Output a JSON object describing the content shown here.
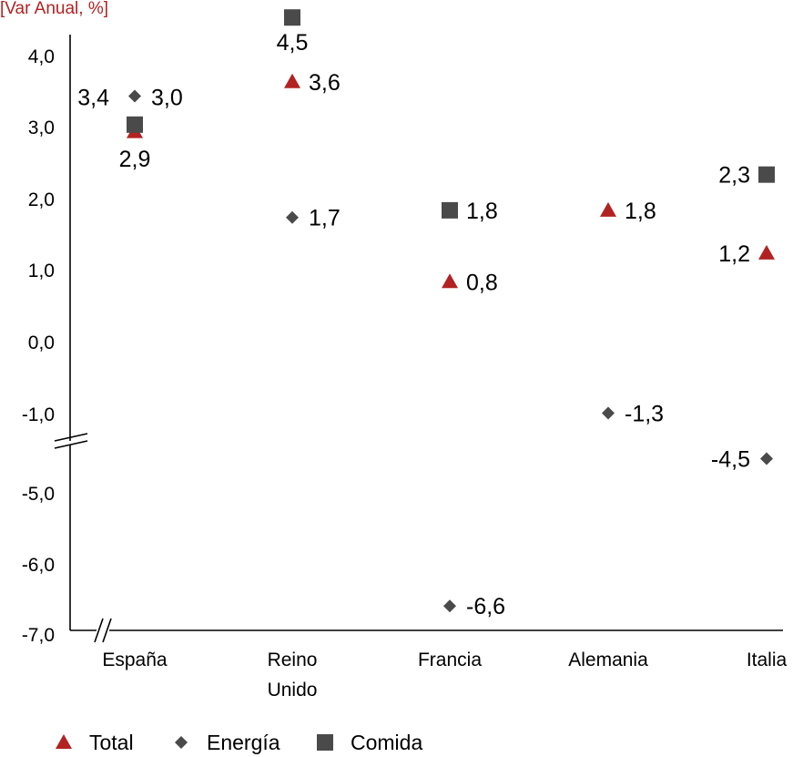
{
  "chart_data": {
    "type": "scatter",
    "unit_label": "[Var Anual, %]",
    "categories": [
      "España",
      "Reino Unido",
      "Francia",
      "Alemania",
      "Italia"
    ],
    "y_ticks_upper": [
      "4,0",
      "3,0",
      "2,0",
      "1,0",
      "0,0",
      "-1,0"
    ],
    "y_ticks_lower": [
      "-5,0",
      "-6,0",
      "-7,0"
    ],
    "axis_break": {
      "from": -1.0,
      "to": -4.0
    },
    "grid": false,
    "legend_position": "bottom-left",
    "colors": {
      "total": "#b22222",
      "energia": "#4a4a4a",
      "comida": "#4a4a4a"
    },
    "series": [
      {
        "name": "Total",
        "marker": "triangle",
        "values": [
          2.9,
          3.6,
          0.8,
          1.8,
          1.2
        ],
        "labels": [
          "",
          "3,6",
          "0,8",
          "1,8",
          "1,2"
        ]
      },
      {
        "name": "Energía",
        "marker": "diamond",
        "values": [
          3.4,
          1.7,
          -6.6,
          -1.3,
          -4.5
        ],
        "labels": [
          "3,4",
          "1,7",
          "-6,6",
          "-1,3",
          "-4,5"
        ]
      },
      {
        "name": "Comida",
        "marker": "square",
        "values": [
          3.0,
          4.5,
          1.8,
          null,
          2.3
        ],
        "labels": [
          "3,0",
          "4,5",
          "1,8",
          "",
          "2,3"
        ]
      }
    ],
    "extra_labels": [
      {
        "category_index": 0,
        "text": "2,9"
      }
    ]
  }
}
